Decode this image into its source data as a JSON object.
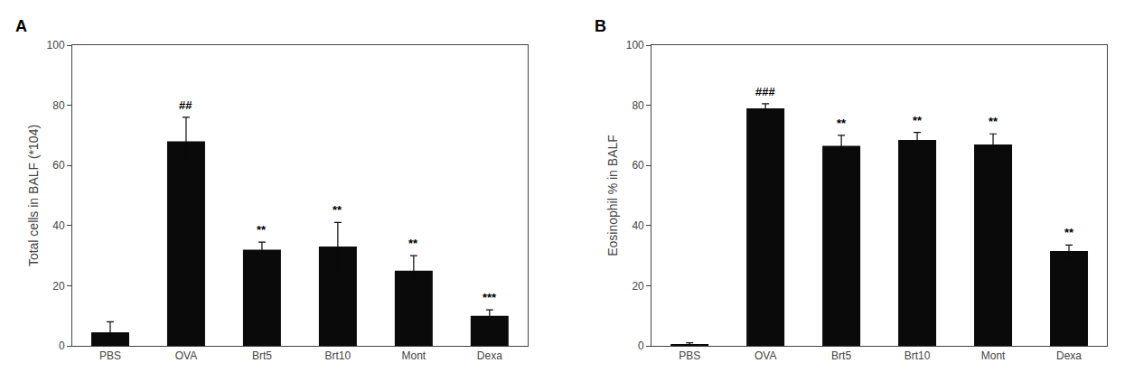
{
  "chart_data": [
    {
      "type": "bar",
      "title": "A",
      "categories": [
        "PBS",
        "OVA",
        "Brt5",
        "Brt10",
        "Mont",
        "Dexa"
      ],
      "values": [
        4.5,
        68.0,
        32.0,
        33.0,
        25.0,
        10.0
      ],
      "errors": [
        3.5,
        8.0,
        2.5,
        8.0,
        5.0,
        2.0
      ],
      "ylabel": "Total cells in BALF (*104)",
      "ylim": [
        0,
        100
      ],
      "yticks": [
        0,
        20,
        40,
        60,
        80,
        100
      ],
      "annotations": [
        {
          "category": "OVA",
          "text": "##"
        },
        {
          "category": "Brt5",
          "text": "**"
        },
        {
          "category": "Brt10",
          "text": "**"
        },
        {
          "category": "Mont",
          "text": "**"
        },
        {
          "category": "Dexa",
          "text": "***"
        }
      ],
      "color": "#0a0a0a",
      "grid": false
    },
    {
      "type": "bar",
      "title": "B",
      "categories": [
        "PBS",
        "OVA",
        "Brt5",
        "Brt10",
        "Mont",
        "Dexa"
      ],
      "values": [
        0.5,
        79.0,
        66.5,
        68.5,
        67.0,
        31.5
      ],
      "errors": [
        0.5,
        1.5,
        3.5,
        2.5,
        3.5,
        2.0
      ],
      "ylabel": "Eosinophil % in BALF",
      "ylim": [
        0,
        100
      ],
      "yticks": [
        0,
        20,
        40,
        60,
        80,
        100
      ],
      "annotations": [
        {
          "category": "OVA",
          "text": "###"
        },
        {
          "category": "Brt5",
          "text": "**"
        },
        {
          "category": "Brt10",
          "text": "**"
        },
        {
          "category": "Mont",
          "text": "**"
        },
        {
          "category": "Dexa",
          "text": "**"
        }
      ],
      "color": "#0a0a0a",
      "grid": false
    }
  ]
}
